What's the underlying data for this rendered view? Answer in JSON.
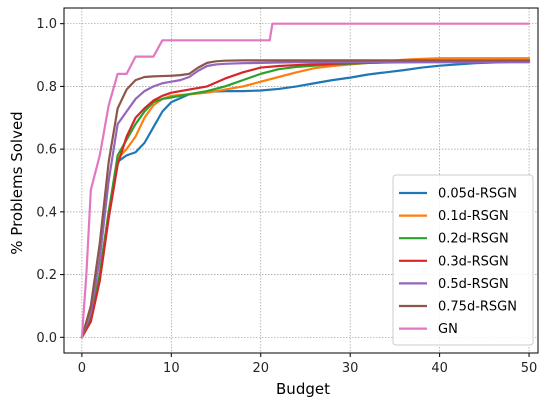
{
  "chart_data": {
    "type": "line",
    "title": "",
    "xlabel": "Budget",
    "ylabel": "% Problems Solved",
    "xlim": [
      -2,
      51
    ],
    "ylim": [
      -0.05,
      1.05
    ],
    "xticks": [
      0,
      10,
      20,
      30,
      40,
      50
    ],
    "yticks": [
      0.0,
      0.2,
      0.4,
      0.6,
      0.8,
      1.0
    ],
    "xtick_labels": [
      "0",
      "10",
      "20",
      "30",
      "40",
      "50"
    ],
    "ytick_labels": [
      "0.0",
      "0.2",
      "0.4",
      "0.6",
      "0.8",
      "1.0"
    ],
    "grid": true,
    "legend_position": "lower-right",
    "series": [
      {
        "name": "0.05d-RSGN",
        "color": "#1f77b4",
        "x": [
          0,
          1,
          2,
          3,
          4,
          5,
          6,
          7,
          8,
          9,
          10,
          12,
          14,
          16,
          18,
          20,
          22,
          24,
          26,
          28,
          30,
          32,
          34,
          36,
          38,
          40,
          42,
          44,
          46,
          48,
          50
        ],
        "y": [
          0,
          0.06,
          0.2,
          0.4,
          0.56,
          0.58,
          0.59,
          0.62,
          0.67,
          0.72,
          0.75,
          0.775,
          0.783,
          0.785,
          0.785,
          0.787,
          0.792,
          0.8,
          0.81,
          0.82,
          0.828,
          0.838,
          0.845,
          0.852,
          0.86,
          0.866,
          0.87,
          0.874,
          0.876,
          0.878,
          0.88
        ]
      },
      {
        "name": "0.1d-RSGN",
        "color": "#ff7f0e",
        "x": [
          0,
          1,
          2,
          3,
          4,
          5,
          6,
          7,
          8,
          9,
          10,
          12,
          14,
          16,
          18,
          20,
          22,
          24,
          26,
          28,
          30,
          32,
          34,
          36,
          38,
          40,
          42,
          44,
          46,
          48,
          50
        ],
        "y": [
          0,
          0.06,
          0.2,
          0.4,
          0.57,
          0.6,
          0.64,
          0.7,
          0.74,
          0.76,
          0.77,
          0.775,
          0.78,
          0.79,
          0.8,
          0.815,
          0.83,
          0.845,
          0.858,
          0.865,
          0.87,
          0.875,
          0.88,
          0.885,
          0.888,
          0.89,
          0.89,
          0.89,
          0.89,
          0.89,
          0.89
        ]
      },
      {
        "name": "0.2d-RSGN",
        "color": "#2ca02c",
        "x": [
          0,
          1,
          2,
          3,
          4,
          5,
          6,
          7,
          8,
          9,
          10,
          12,
          14,
          16,
          18,
          20,
          22,
          24,
          26,
          28,
          30,
          32,
          34,
          36,
          38,
          40,
          42,
          44,
          46,
          48,
          50
        ],
        "y": [
          0,
          0.06,
          0.2,
          0.4,
          0.58,
          0.63,
          0.68,
          0.72,
          0.75,
          0.76,
          0.765,
          0.775,
          0.785,
          0.8,
          0.82,
          0.84,
          0.855,
          0.862,
          0.866,
          0.87,
          0.872,
          0.875,
          0.877,
          0.879,
          0.88,
          0.88,
          0.88,
          0.88,
          0.88,
          0.88,
          0.88
        ]
      },
      {
        "name": "0.3d-RSGN",
        "color": "#d62728",
        "x": [
          0,
          1,
          2,
          3,
          4,
          5,
          6,
          7,
          8,
          9,
          10,
          12,
          14,
          16,
          18,
          20,
          22,
          24,
          26,
          28,
          30,
          32,
          34,
          36,
          38,
          40,
          42,
          44,
          46,
          48,
          50
        ],
        "y": [
          0,
          0.05,
          0.18,
          0.38,
          0.55,
          0.64,
          0.7,
          0.73,
          0.755,
          0.77,
          0.78,
          0.79,
          0.8,
          0.825,
          0.845,
          0.86,
          0.865,
          0.868,
          0.87,
          0.872,
          0.874,
          0.875,
          0.876,
          0.877,
          0.878,
          0.879,
          0.88,
          0.88,
          0.88,
          0.88,
          0.88
        ]
      },
      {
        "name": "0.5d-RSGN",
        "color": "#9467bd",
        "x": [
          0,
          1,
          2,
          3,
          4,
          5,
          6,
          7,
          8,
          9,
          10,
          11,
          12,
          13,
          14,
          15,
          16,
          18,
          20,
          22,
          24,
          26,
          28,
          30,
          32,
          34,
          36,
          38,
          40,
          42,
          44,
          46,
          48,
          50
        ],
        "y": [
          0,
          0.08,
          0.25,
          0.5,
          0.68,
          0.72,
          0.76,
          0.785,
          0.8,
          0.81,
          0.815,
          0.82,
          0.83,
          0.85,
          0.865,
          0.87,
          0.872,
          0.874,
          0.875,
          0.876,
          0.877,
          0.877,
          0.877,
          0.877,
          0.877,
          0.877,
          0.877,
          0.877,
          0.877,
          0.877,
          0.877,
          0.877,
          0.877,
          0.877
        ]
      },
      {
        "name": "0.75d-RSGN",
        "color": "#8c564b",
        "x": [
          0,
          1,
          2,
          3,
          4,
          5,
          6,
          7,
          8,
          9,
          10,
          11,
          12,
          13,
          14,
          15,
          16,
          18,
          20,
          22,
          24,
          26,
          28,
          30,
          32,
          34,
          36,
          38,
          40,
          42,
          44,
          46,
          48,
          50
        ],
        "y": [
          0,
          0.1,
          0.3,
          0.56,
          0.73,
          0.79,
          0.82,
          0.83,
          0.832,
          0.833,
          0.834,
          0.836,
          0.84,
          0.86,
          0.875,
          0.88,
          0.882,
          0.883,
          0.883,
          0.883,
          0.883,
          0.883,
          0.883,
          0.883,
          0.883,
          0.883,
          0.883,
          0.883,
          0.883,
          0.883,
          0.883,
          0.883,
          0.883,
          0.883
        ]
      },
      {
        "name": "GN",
        "color": "#e377c2",
        "x": [
          0,
          0.5,
          1,
          2,
          3,
          4,
          5,
          6,
          7,
          8,
          9,
          10,
          11,
          20,
          21,
          21.3,
          30,
          40,
          50
        ],
        "y": [
          0,
          0.2,
          0.47,
          0.58,
          0.74,
          0.84,
          0.84,
          0.895,
          0.895,
          0.895,
          0.947,
          0.947,
          0.947,
          0.947,
          0.947,
          1.0,
          1.0,
          1.0,
          1.0
        ]
      }
    ]
  }
}
